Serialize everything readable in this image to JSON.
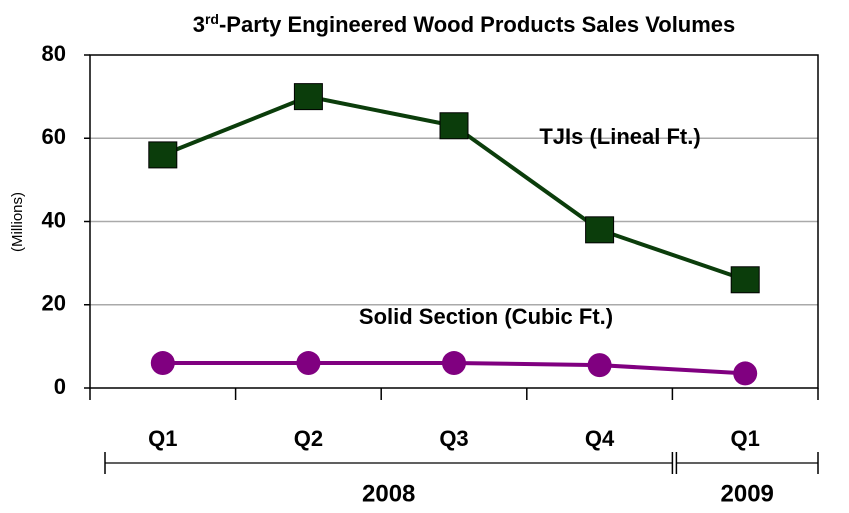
{
  "chart_data": {
    "type": "line",
    "title": "3rd-Party Engineered Wood Products Sales Volumes",
    "y_label": "(Millions)",
    "categories": [
      "Q1",
      "Q2",
      "Q3",
      "Q4",
      "Q1"
    ],
    "category_groups": [
      "2008",
      "2008",
      "2008",
      "2008",
      "2009"
    ],
    "series": [
      {
        "name": "TJIs (Lineal Ft.)",
        "color": "#0b3d0b",
        "marker": "square",
        "values": [
          56,
          70,
          63,
          38,
          26
        ]
      },
      {
        "name": "Solid Section (Cubic Ft.)",
        "color": "#800080",
        "marker": "circle",
        "values": [
          6,
          6,
          6,
          5.5,
          3.5
        ]
      }
    ],
    "ylim": [
      0,
      80
    ],
    "yticks": [
      0,
      20,
      40,
      60,
      80
    ],
    "grid": true
  }
}
